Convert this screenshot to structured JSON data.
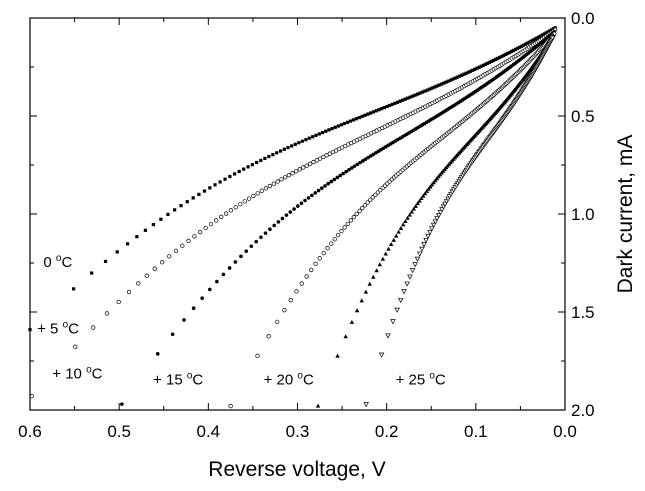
{
  "chart_data": {
    "type": "scatter",
    "title": "",
    "xlabel": "Reverse voltage, V",
    "ylabel": "Dark current, mA",
    "xlim": [
      0.6,
      0.0
    ],
    "ylim": [
      0.0,
      2.0
    ],
    "x_inverted": true,
    "y_inverted": true,
    "y_axis_side": "right",
    "grid": false,
    "x_ticks": [
      "0.6",
      "0.5",
      "0.4",
      "0.3",
      "0.2",
      "0.1",
      "0.0"
    ],
    "y_ticks": [
      "0.0",
      "0.5",
      "1.0",
      "1.5",
      "2.0"
    ],
    "series": [
      {
        "label": "0 °C",
        "label_base": "0 ",
        "label_sup": "o",
        "label_unit": "C",
        "marker": "filled-square",
        "x_start": 0.6,
        "y_start": 1.59,
        "x_end": 0.011,
        "y_end": 0.05,
        "label_at": [
          0.585,
          1.27
        ]
      },
      {
        "label": "+ 5 °C",
        "label_base": "+ 5 ",
        "label_sup": "o",
        "label_unit": "C",
        "marker": "open-circle",
        "x_start": 0.598,
        "y_start": 1.93,
        "x_end": 0.011,
        "y_end": 0.06,
        "label_at": [
          0.592,
          1.61
        ]
      },
      {
        "label": "+ 10 °C",
        "label_base": "+ 10 ",
        "label_sup": "o",
        "label_unit": "C",
        "marker": "filled-circle",
        "x_start": 0.497,
        "y_start": 1.97,
        "x_end": 0.012,
        "y_end": 0.07,
        "label_at": [
          0.575,
          1.84
        ]
      },
      {
        "label": "+ 15 °C",
        "label_base": "+ 15 ",
        "label_sup": "o",
        "label_unit": "C",
        "marker": "open-circle",
        "x_start": 0.375,
        "y_start": 1.98,
        "x_end": 0.012,
        "y_end": 0.08,
        "label_at": [
          0.462,
          1.87
        ]
      },
      {
        "label": "+ 20 °C",
        "label_base": "+ 20 ",
        "label_sup": "o",
        "label_unit": "C",
        "marker": "filled-triangle",
        "x_start": 0.277,
        "y_start": 1.98,
        "x_end": 0.013,
        "y_end": 0.09,
        "label_at": [
          0.338,
          1.87
        ]
      },
      {
        "label": "+ 25 °C",
        "label_base": "+ 25 ",
        "label_sup": "o",
        "label_unit": "C",
        "marker": "open-triangle",
        "x_start": 0.223,
        "y_start": 1.97,
        "x_end": 0.014,
        "y_end": 0.1,
        "label_at": [
          0.19,
          1.87
        ]
      }
    ]
  }
}
